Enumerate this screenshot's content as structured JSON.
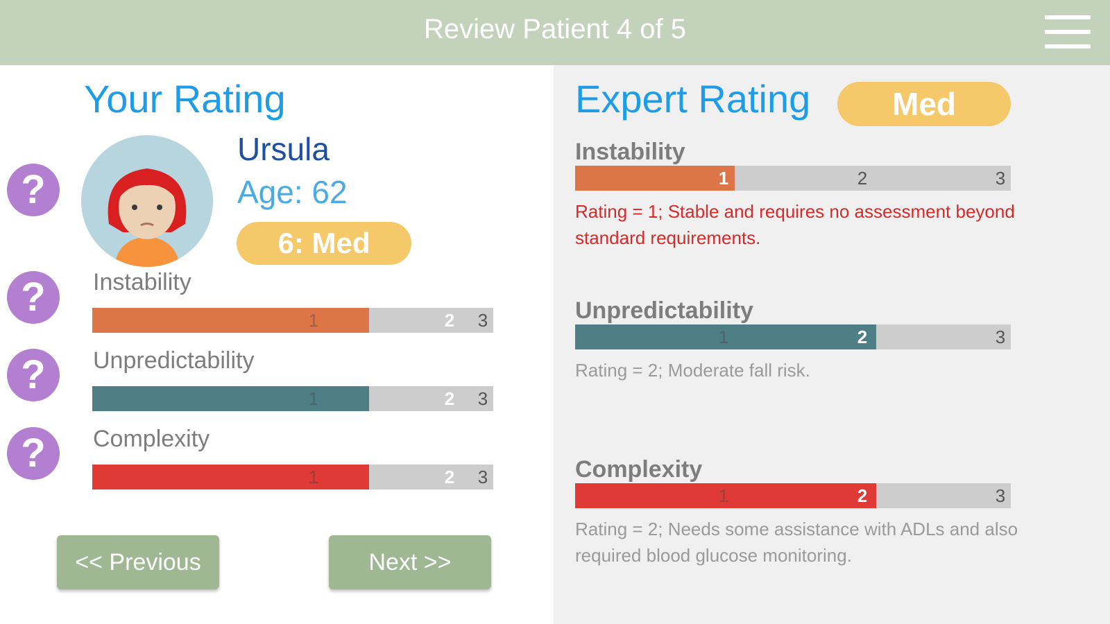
{
  "header": {
    "title": "Review Patient 4 of 5",
    "menu_icon": "hamburger-menu-icon"
  },
  "your_rating": {
    "title": "Your Rating",
    "patient": {
      "name": "Ursula",
      "age": "Age: 62",
      "score_badge": "6: Med"
    },
    "categories": [
      {
        "label": "Instability",
        "ticks": [
          "1",
          "2",
          "3"
        ],
        "selected": 2,
        "color": "#dd7548"
      },
      {
        "label": "Unpredictability",
        "ticks": [
          "1",
          "2",
          "3"
        ],
        "selected": 2,
        "color": "#4f7f86"
      },
      {
        "label": "Complexity",
        "ticks": [
          "1",
          "2",
          "3"
        ],
        "selected": 2,
        "color": "#df3a35"
      }
    ]
  },
  "expert_rating": {
    "title": "Expert Rating",
    "badge": "Med",
    "categories": [
      {
        "label": "Instability",
        "ticks": [
          "1",
          "2",
          "3"
        ],
        "selected": 1,
        "color": "#dd7548",
        "description": "Rating = 1; Stable and requires no assessment beyond standard requirements."
      },
      {
        "label": "Unpredictability",
        "ticks": [
          "1",
          "2",
          "3"
        ],
        "selected": 2,
        "color": "#4f7f86",
        "description": "Rating = 2; Moderate fall risk."
      },
      {
        "label": "Complexity",
        "ticks": [
          "1",
          "2",
          "3"
        ],
        "selected": 2,
        "color": "#df3a35",
        "description": "Rating = 2; Needs some assistance with ADLs and also required blood glucose monitoring."
      }
    ]
  },
  "navigation": {
    "previous_label": "<< Previous",
    "next_label": "Next >>"
  },
  "help_icon_glyph": "?",
  "colors": {
    "header_bg": "#c3d3bb",
    "title_blue": "#1e9ce6",
    "badge_yellow": "#f5c96a",
    "help_purple": "#b27fd1",
    "button_green": "#9fb893"
  }
}
